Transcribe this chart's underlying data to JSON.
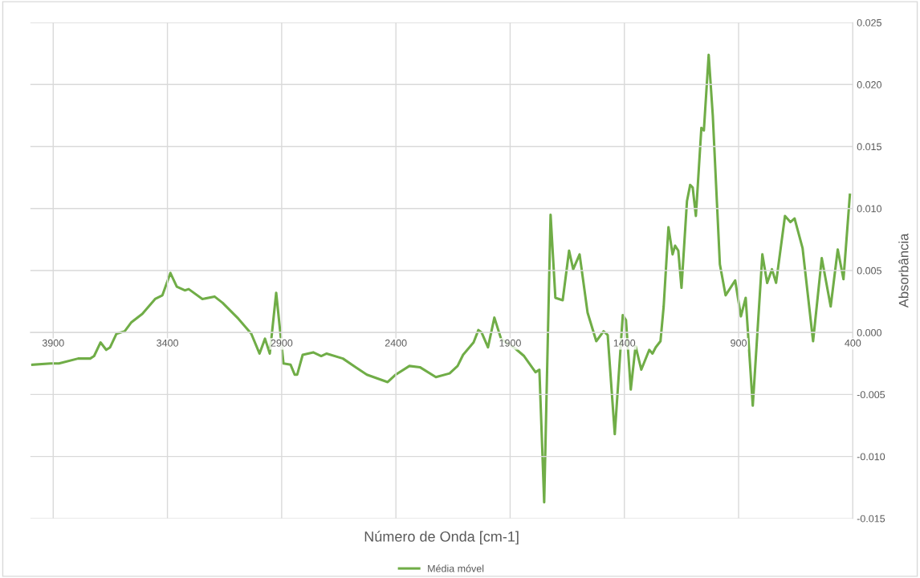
{
  "chart_data": {
    "type": "line",
    "xlabel": "Número de Onda [cm-1]",
    "ylabel": "Absorbância",
    "x": [
      3991,
      3911,
      3875,
      3791,
      3738,
      3721,
      3693,
      3668,
      3651,
      3623,
      3587,
      3559,
      3510,
      3454,
      3422,
      3387,
      3359,
      3324,
      3307,
      3247,
      3194,
      3159,
      3089,
      3033,
      2997,
      2973,
      2952,
      2924,
      2892,
      2861,
      2843,
      2832,
      2808,
      2762,
      2727,
      2703,
      2632,
      2576,
      2527,
      2436,
      2401,
      2341,
      2295,
      2225,
      2165,
      2130,
      2106,
      2060,
      2039,
      2025,
      1997,
      1969,
      1940,
      1877,
      1839,
      1789,
      1772,
      1751,
      1723,
      1702,
      1670,
      1642,
      1624,
      1596,
      1561,
      1523,
      1491,
      1473,
      1442,
      1407,
      1393,
      1372,
      1351,
      1326,
      1291,
      1277,
      1263,
      1242,
      1228,
      1207,
      1189,
      1178,
      1164,
      1150,
      1126,
      1112,
      1101,
      1087,
      1063,
      1052,
      1031,
      1013,
      982,
      957,
      915,
      890,
      869,
      838,
      796,
      775,
      754,
      736,
      697,
      673,
      655,
      620,
      574,
      536,
      497,
      466,
      441,
      413
    ],
    "series": [
      {
        "name": "Média móvel",
        "color": "#70ad47",
        "values": [
          -0.0026,
          -0.0025,
          -0.0025,
          -0.0021,
          -0.0021,
          -0.0019,
          -0.0008,
          -0.0014,
          -0.0012,
          -0.0001,
          0.0001,
          0.0008,
          0.0015,
          0.0027,
          0.003,
          0.0048,
          0.0037,
          0.0034,
          0.0035,
          0.0027,
          0.0029,
          0.0024,
          0.0011,
          -0.0001,
          -0.0017,
          -0.0005,
          -0.0017,
          0.0032,
          -0.0025,
          -0.0026,
          -0.0034,
          -0.0034,
          -0.0018,
          -0.0016,
          -0.0019,
          -0.0017,
          -0.0021,
          -0.0028,
          -0.0034,
          -0.004,
          -0.0034,
          -0.0027,
          -0.0028,
          -0.0036,
          -0.0033,
          -0.0027,
          -0.0018,
          -0.0008,
          0.0002,
          0.0,
          -0.0012,
          0.0012,
          -0.0005,
          -0.0013,
          -0.0019,
          -0.0032,
          -0.003,
          -0.0137,
          0.0095,
          0.0028,
          0.0026,
          0.0066,
          0.0051,
          0.0063,
          0.0016,
          -0.0007,
          0.0001,
          -0.0002,
          -0.0082,
          0.0014,
          0.001,
          -0.0046,
          -0.0011,
          -0.003,
          -0.0014,
          -0.0017,
          -0.0012,
          -0.0007,
          0.0021,
          0.0085,
          0.0063,
          0.007,
          0.0066,
          0.0036,
          0.0106,
          0.0119,
          0.0117,
          0.0094,
          0.0165,
          0.0163,
          0.0224,
          0.0175,
          0.0055,
          0.003,
          0.0042,
          0.0013,
          0.0028,
          -0.0059,
          0.0063,
          0.004,
          0.0051,
          0.004,
          0.0094,
          0.0089,
          0.0092,
          0.0068,
          -0.0007,
          0.006,
          0.0021,
          0.0067,
          0.0043,
          0.0111
        ]
      }
    ],
    "xlim": [
      4000,
      400
    ],
    "xticks": [
      3900,
      3400,
      2900,
      2400,
      1900,
      1400,
      900,
      400
    ],
    "ylim": [
      -0.015,
      0.025
    ],
    "yticks": [
      {
        "value": -0.015,
        "label": "-0.015"
      },
      {
        "value": -0.01,
        "label": "-0.010"
      },
      {
        "value": -0.005,
        "label": "-0.005"
      },
      {
        "value": 0,
        "label": "0.000"
      },
      {
        "value": 0.005,
        "label": "0.005"
      },
      {
        "value": 0.01,
        "label": "0.010"
      },
      {
        "value": 0.015,
        "label": "0.015"
      },
      {
        "value": 0.02,
        "label": "0.020"
      },
      {
        "value": 0.025,
        "label": "0.025"
      }
    ],
    "grid": true,
    "legend": "bottom",
    "marker": "none",
    "line_style": "solid"
  }
}
